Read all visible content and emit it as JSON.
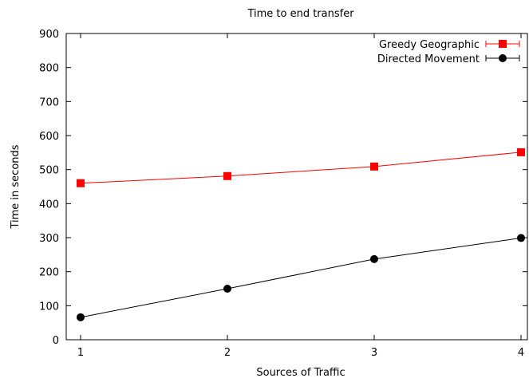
{
  "chart_data": {
    "type": "line",
    "title": "Time to end transfer",
    "xlabel": "Sources of Traffic",
    "ylabel": "Time in seconds",
    "x": [
      1,
      2,
      3,
      4
    ],
    "xlim": [
      1,
      4
    ],
    "ylim": [
      0,
      900
    ],
    "xticks": [
      "1",
      "2",
      "3",
      "4"
    ],
    "yticks": [
      "0",
      "100",
      "200",
      "300",
      "400",
      "500",
      "600",
      "700",
      "800",
      "900"
    ],
    "grid": false,
    "legend_position": "top-right",
    "series": [
      {
        "name": "Greedy Geographic",
        "color": "#ff0000",
        "marker": "square",
        "values": [
          460,
          481,
          509,
          551
        ]
      },
      {
        "name": "Directed Movement",
        "color": "#000000",
        "marker": "circle",
        "values": [
          66,
          150,
          237,
          299
        ]
      }
    ]
  }
}
